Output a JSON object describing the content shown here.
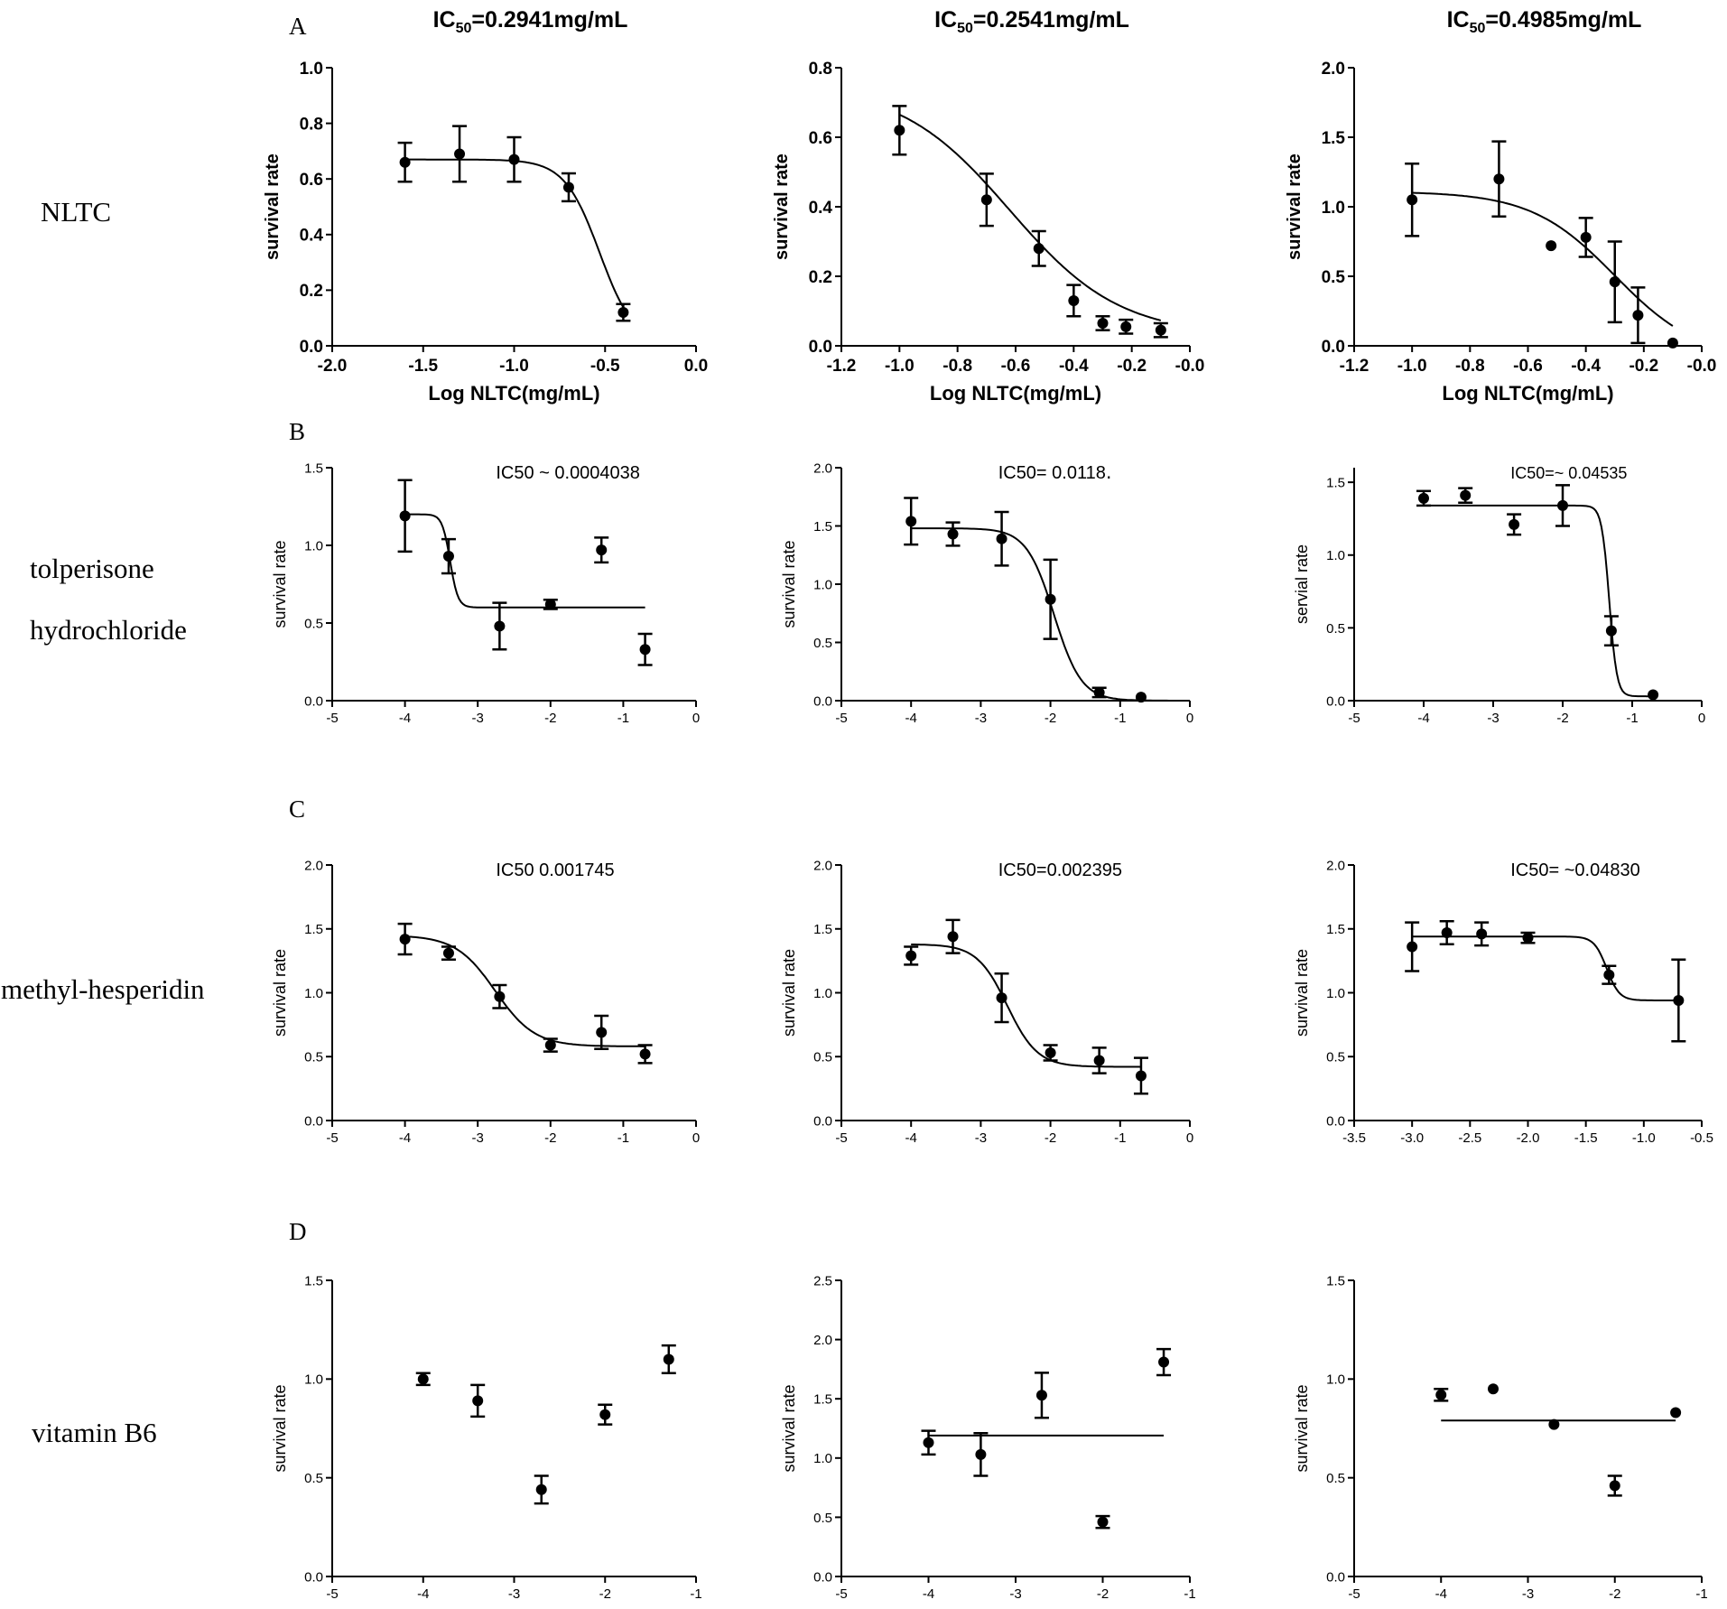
{
  "figure": {
    "panel_letters": [
      "A",
      "B",
      "C",
      "D"
    ],
    "row_labels": [
      [
        "NLTC"
      ],
      [
        "tolperisone",
        "hydrochloride"
      ],
      [
        "methyl-hesperidin"
      ],
      [
        "vitamin B6"
      ]
    ]
  },
  "chart_data": [
    {
      "type": "scatter",
      "row": 0,
      "col": 0,
      "title": "IC50=0.2941mg/mL",
      "ylabel": "survival rate",
      "xlabel": "Log NLTC(mg/mL)",
      "xlim": [
        -2.0,
        0.0
      ],
      "ylim": [
        0.0,
        1.0
      ],
      "xticks": [
        -2.0,
        -1.5,
        -1.0,
        -0.5,
        0.0
      ],
      "xtick_labels": [
        "-2.0",
        "-1.5",
        "-1.0",
        "-0.5",
        "0.0"
      ],
      "yticks": [
        0,
        0.2,
        0.4,
        0.6,
        0.8,
        1.0
      ],
      "ytick_labels": [
        "0.0",
        "0.2",
        "0.4",
        "0.6",
        "0.8",
        "1.0"
      ],
      "points": [
        {
          "x": -1.6,
          "y": 0.66,
          "err": 0.07
        },
        {
          "x": -1.3,
          "y": 0.69,
          "err": 0.1
        },
        {
          "x": -1.0,
          "y": 0.67,
          "err": 0.08
        },
        {
          "x": -0.7,
          "y": 0.57,
          "err": 0.05
        },
        {
          "x": -0.4,
          "y": 0.12,
          "err": 0.03
        }
      ],
      "fit": {
        "kind": "sigmoid",
        "bottom": 0.0,
        "top": 0.67,
        "logec50": -0.53,
        "hill": -4.5,
        "xmin": -1.6,
        "xmax": -0.4
      }
    },
    {
      "type": "scatter",
      "row": 0,
      "col": 1,
      "title": "IC50=0.2541mg/mL",
      "ylabel": "survival rate",
      "xlabel": "Log NLTC(mg/mL)",
      "xlim": [
        -1.2,
        0.0
      ],
      "ylim": [
        0.0,
        0.8
      ],
      "xticks": [
        -1.2,
        -1.0,
        -0.8,
        -0.6,
        -0.4,
        -0.2,
        0.0
      ],
      "xtick_labels": [
        "-1.2",
        "-1.0",
        "-0.8",
        "-0.6",
        "-0.4",
        "-0.2",
        "-0.0"
      ],
      "yticks": [
        0,
        0.2,
        0.4,
        0.6,
        0.8
      ],
      "ytick_labels": [
        "0.0",
        "0.2",
        "0.4",
        "0.6",
        "0.8"
      ],
      "points": [
        {
          "x": -1.0,
          "y": 0.62,
          "err": 0.07
        },
        {
          "x": -0.7,
          "y": 0.42,
          "err": 0.075
        },
        {
          "x": -0.52,
          "y": 0.28,
          "err": 0.05
        },
        {
          "x": -0.4,
          "y": 0.13,
          "err": 0.045
        },
        {
          "x": -0.3,
          "y": 0.065,
          "err": 0.02
        },
        {
          "x": -0.22,
          "y": 0.055,
          "err": 0.02
        },
        {
          "x": -0.1,
          "y": 0.045,
          "err": 0.02
        }
      ],
      "fit": {
        "kind": "sigmoid",
        "bottom": 0.03,
        "top": 0.75,
        "logec50": -0.62,
        "hill": -2.3,
        "xmin": -1.0,
        "xmax": -0.1
      }
    },
    {
      "type": "scatter",
      "row": 0,
      "col": 2,
      "title": "IC50=0.4985mg/mL",
      "ylabel": "survival rate",
      "xlabel": "Log NLTC(mg/mL)",
      "xlim": [
        -1.2,
        0.0
      ],
      "ylim": [
        0.0,
        2.0
      ],
      "xticks": [
        -1.2,
        -1.0,
        -0.8,
        -0.6,
        -0.4,
        -0.2,
        0.0
      ],
      "xtick_labels": [
        "-1.2",
        "-1.0",
        "-0.8",
        "-0.6",
        "-0.4",
        "-0.2",
        "-0.0"
      ],
      "yticks": [
        0,
        0.5,
        1.0,
        1.5,
        2.0
      ],
      "ytick_labels": [
        "0.0",
        "0.5",
        "1.0",
        "1.5",
        "2.0"
      ],
      "points": [
        {
          "x": -1.0,
          "y": 1.05,
          "err": 0.26
        },
        {
          "x": -0.7,
          "y": 1.2,
          "err": 0.27
        },
        {
          "x": -0.52,
          "y": 0.72,
          "err": 0.0
        },
        {
          "x": -0.4,
          "y": 0.78,
          "err": 0.14
        },
        {
          "x": -0.3,
          "y": 0.46,
          "err": 0.29
        },
        {
          "x": -0.22,
          "y": 0.22,
          "err": 0.2
        },
        {
          "x": -0.1,
          "y": 0.02,
          "err": 0.0
        }
      ],
      "fit": {
        "kind": "sigmoid",
        "bottom": -0.1,
        "top": 1.11,
        "logec50": -0.3,
        "hill": -3.0,
        "xmin": -1.0,
        "xmax": -0.1
      }
    },
    {
      "type": "scatter",
      "row": 1,
      "col": 0,
      "annotation": "IC50 ~ 0.0004038",
      "ylabel": "survival rate",
      "xlabel": "",
      "xlim": [
        -5,
        0
      ],
      "ylim": [
        0.0,
        1.5
      ],
      "xticks": [
        -5,
        -4,
        -3,
        -2,
        -1,
        0
      ],
      "xtick_labels": [
        "-5",
        "-4",
        "-3",
        "-2",
        "-1",
        "0"
      ],
      "yticks": [
        0,
        0.5,
        1.0,
        1.5
      ],
      "ytick_labels": [
        "0.0",
        "0.5",
        "1.0",
        "1.5"
      ],
      "points": [
        {
          "x": -4.0,
          "y": 1.19,
          "err": 0.23
        },
        {
          "x": -3.4,
          "y": 0.93,
          "err": 0.11
        },
        {
          "x": -2.7,
          "y": 0.48,
          "err": 0.15
        },
        {
          "x": -2.0,
          "y": 0.62,
          "err": 0.03
        },
        {
          "x": -1.3,
          "y": 0.97,
          "err": 0.08
        },
        {
          "x": -0.7,
          "y": 0.33,
          "err": 0.1
        }
      ],
      "fit": {
        "kind": "sigmoid",
        "bottom": 0.6,
        "top": 1.2,
        "logec50": -3.38,
        "hill": -8.0,
        "xmin": -4.0,
        "xmax": -0.7
      }
    },
    {
      "type": "scatter",
      "row": 1,
      "col": 1,
      "annotation": "IC50=  0.0118․",
      "ylabel": "survival rate",
      "xlabel": "",
      "xlim": [
        -5,
        0
      ],
      "ylim": [
        0.0,
        2.0
      ],
      "xticks": [
        -5,
        -4,
        -3,
        -2,
        -1,
        0
      ],
      "xtick_labels": [
        "-5",
        "-4",
        "-3",
        "-2",
        "-1",
        "0"
      ],
      "yticks": [
        0,
        0.5,
        1.0,
        1.5,
        2.0
      ],
      "ytick_labels": [
        "0.0",
        "0.5",
        "1.0",
        "1.5",
        "2.0"
      ],
      "points": [
        {
          "x": -4.0,
          "y": 1.54,
          "err": 0.2
        },
        {
          "x": -3.4,
          "y": 1.43,
          "err": 0.1
        },
        {
          "x": -2.7,
          "y": 1.39,
          "err": 0.23
        },
        {
          "x": -2.0,
          "y": 0.87,
          "err": 0.34
        },
        {
          "x": -1.3,
          "y": 0.07,
          "err": 0.04
        },
        {
          "x": -0.7,
          "y": 0.03,
          "err": 0.0
        }
      ],
      "fit": {
        "kind": "sigmoid",
        "bottom": 0.0,
        "top": 1.48,
        "logec50": -1.95,
        "hill": -2.2,
        "xmin": -4.0,
        "xmax": 0.0
      }
    },
    {
      "type": "scatter",
      "row": 1,
      "col": 2,
      "annotation": "IC50=~ 0.04535",
      "ylabel": "servial rate",
      "xlabel": "",
      "xlim": [
        -5,
        0
      ],
      "ylim": [
        0.0,
        1.6
      ],
      "xticks": [
        -5,
        -4,
        -3,
        -2,
        -1,
        0
      ],
      "xtick_labels": [
        "-5",
        "-4",
        "-3",
        "-2",
        "-1",
        "0"
      ],
      "yticks": [
        0,
        0.5,
        1.0,
        1.5
      ],
      "ytick_labels": [
        "0.0",
        "0.5",
        "1.0",
        "1.5"
      ],
      "points": [
        {
          "x": -4.0,
          "y": 1.39,
          "err": 0.05
        },
        {
          "x": -3.4,
          "y": 1.41,
          "err": 0.05
        },
        {
          "x": -2.7,
          "y": 1.21,
          "err": 0.07
        },
        {
          "x": -2.0,
          "y": 1.34,
          "err": 0.14
        },
        {
          "x": -1.3,
          "y": 0.48,
          "err": 0.1
        },
        {
          "x": -0.7,
          "y": 0.04,
          "err": 0.0
        }
      ],
      "fit": {
        "kind": "sigmoid",
        "bottom": 0.03,
        "top": 1.34,
        "logec50": -1.33,
        "hill": -8.0,
        "xmin": -4.0,
        "xmax": -0.7
      }
    },
    {
      "type": "scatter",
      "row": 2,
      "col": 0,
      "annotation": "IC50  0.001745",
      "ylabel": "survival rate",
      "xlabel": "",
      "xlim": [
        -5,
        0
      ],
      "ylim": [
        0.0,
        2.0
      ],
      "xticks": [
        -5,
        -4,
        -3,
        -2,
        -1,
        0
      ],
      "xtick_labels": [
        "-5",
        "-4",
        "-3",
        "-2",
        "-1",
        "0"
      ],
      "yticks": [
        0,
        0.5,
        1.0,
        1.5,
        2.0
      ],
      "ytick_labels": [
        "0.0",
        "0.5",
        "1.0",
        "1.5",
        "2.0"
      ],
      "points": [
        {
          "x": -4.0,
          "y": 1.42,
          "err": 0.12
        },
        {
          "x": -3.4,
          "y": 1.31,
          "err": 0.05
        },
        {
          "x": -2.7,
          "y": 0.97,
          "err": 0.09
        },
        {
          "x": -2.0,
          "y": 0.59,
          "err": 0.05
        },
        {
          "x": -1.3,
          "y": 0.69,
          "err": 0.13
        },
        {
          "x": -0.7,
          "y": 0.52,
          "err": 0.07
        }
      ],
      "fit": {
        "kind": "sigmoid",
        "bottom": 0.58,
        "top": 1.45,
        "logec50": -2.76,
        "hill": -1.6,
        "xmin": -4.0,
        "xmax": -0.7
      }
    },
    {
      "type": "scatter",
      "row": 2,
      "col": 1,
      "annotation": "IC50=0.002395",
      "ylabel": "survival rate",
      "xlabel": "",
      "xlim": [
        -5,
        0
      ],
      "ylim": [
        0.0,
        2.0
      ],
      "xticks": [
        -5,
        -4,
        -3,
        -2,
        -1,
        0
      ],
      "xtick_labels": [
        "-5",
        "-4",
        "-3",
        "-2",
        "-1",
        "0"
      ],
      "yticks": [
        0,
        0.5,
        1.0,
        1.5,
        2.0
      ],
      "ytick_labels": [
        "0.0",
        "0.5",
        "1.0",
        "1.5",
        "2.0"
      ],
      "points": [
        {
          "x": -4.0,
          "y": 1.29,
          "err": 0.07
        },
        {
          "x": -3.4,
          "y": 1.44,
          "err": 0.13
        },
        {
          "x": -2.7,
          "y": 0.96,
          "err": 0.19
        },
        {
          "x": -2.0,
          "y": 0.53,
          "err": 0.06
        },
        {
          "x": -1.3,
          "y": 0.47,
          "err": 0.1
        },
        {
          "x": -0.7,
          "y": 0.35,
          "err": 0.14
        }
      ],
      "fit": {
        "kind": "sigmoid",
        "bottom": 0.42,
        "top": 1.38,
        "logec50": -2.62,
        "hill": -2.0,
        "xmin": -4.0,
        "xmax": -0.7
      }
    },
    {
      "type": "scatter",
      "row": 2,
      "col": 2,
      "annotation": "IC50=    ~0.04830",
      "ylabel": "survival rate",
      "xlabel": "",
      "xlim": [
        -3.5,
        -0.5
      ],
      "ylim": [
        0.0,
        2.0
      ],
      "xticks": [
        -3.5,
        -3.0,
        -2.5,
        -2.0,
        -1.5,
        -1.0,
        -0.5
      ],
      "xtick_labels": [
        "-3.5",
        "-3.0",
        "-2.5",
        "-2.0",
        "-1.5",
        "-1.0",
        "-0.5"
      ],
      "yticks": [
        0,
        0.5,
        1.0,
        1.5,
        2.0
      ],
      "ytick_labels": [
        "0.0",
        "0.5",
        "1.0",
        "1.5",
        "2.0"
      ],
      "points": [
        {
          "x": -3.0,
          "y": 1.36,
          "err": 0.19
        },
        {
          "x": -2.7,
          "y": 1.47,
          "err": 0.09
        },
        {
          "x": -2.4,
          "y": 1.46,
          "err": 0.09
        },
        {
          "x": -2.0,
          "y": 1.43,
          "err": 0.04
        },
        {
          "x": -1.3,
          "y": 1.14,
          "err": 0.07
        },
        {
          "x": -0.7,
          "y": 0.94,
          "err": 0.32
        }
      ],
      "fit": {
        "kind": "sigmoid",
        "bottom": 0.94,
        "top": 1.44,
        "logec50": -1.32,
        "hill": -8.0,
        "xmin": -3.0,
        "xmax": -0.7
      }
    },
    {
      "type": "scatter",
      "row": 3,
      "col": 0,
      "ylabel": "survival rate",
      "xlabel": "",
      "xlim": [
        -5,
        -1
      ],
      "ylim": [
        0.0,
        1.5
      ],
      "xticks": [
        -5,
        -4,
        -3,
        -2,
        -1
      ],
      "xtick_labels": [
        "-5",
        "-4",
        "-3",
        "-2",
        "-1"
      ],
      "yticks": [
        0,
        0.5,
        1.0,
        1.5
      ],
      "ytick_labels": [
        "0.0",
        "0.5",
        "1.0",
        "1.5"
      ],
      "points": [
        {
          "x": -4.0,
          "y": 1.0,
          "err": 0.03
        },
        {
          "x": -3.4,
          "y": 0.89,
          "err": 0.08
        },
        {
          "x": -2.7,
          "y": 0.44,
          "err": 0.07
        },
        {
          "x": -2.0,
          "y": 0.82,
          "err": 0.05
        },
        {
          "x": -1.3,
          "y": 1.1,
          "err": 0.07
        }
      ],
      "fit": null
    },
    {
      "type": "scatter",
      "row": 3,
      "col": 1,
      "ylabel": "survival rate",
      "xlabel": "",
      "xlim": [
        -5,
        -1
      ],
      "ylim": [
        0.0,
        2.5
      ],
      "xticks": [
        -5,
        -4,
        -3,
        -2,
        -1
      ],
      "xtick_labels": [
        "-5",
        "-4",
        "-3",
        "-2",
        "-1"
      ],
      "yticks": [
        0,
        0.5,
        1.0,
        1.5,
        2.0,
        2.5
      ],
      "ytick_labels": [
        "0.0",
        "0.5",
        "1.0",
        "1.5",
        "2.0",
        "2.5"
      ],
      "points": [
        {
          "x": -4.0,
          "y": 1.13,
          "err": 0.1
        },
        {
          "x": -3.4,
          "y": 1.03,
          "err": 0.18
        },
        {
          "x": -2.7,
          "y": 1.53,
          "err": 0.19
        },
        {
          "x": -2.0,
          "y": 0.46,
          "err": 0.05
        },
        {
          "x": -1.3,
          "y": 1.81,
          "err": 0.11
        }
      ],
      "fit": {
        "kind": "flat",
        "value": 1.19,
        "xmin": -4.0,
        "xmax": -1.3
      }
    },
    {
      "type": "scatter",
      "row": 3,
      "col": 2,
      "ylabel": "survival rate",
      "xlabel": "",
      "xlim": [
        -5,
        -1
      ],
      "ylim": [
        0.0,
        1.5
      ],
      "xticks": [
        -5,
        -4,
        -3,
        -2,
        -1
      ],
      "xtick_labels": [
        "-5",
        "-4",
        "-3",
        "-2",
        "-1"
      ],
      "yticks": [
        0,
        0.5,
        1.0,
        1.5
      ],
      "ytick_labels": [
        "0.0",
        "0.5",
        "1.0",
        "1.5"
      ],
      "points": [
        {
          "x": -4.0,
          "y": 0.92,
          "err": 0.03
        },
        {
          "x": -3.4,
          "y": 0.95,
          "err": 0.0
        },
        {
          "x": -2.7,
          "y": 0.77,
          "err": 0.0
        },
        {
          "x": -2.0,
          "y": 0.46,
          "err": 0.05
        },
        {
          "x": -1.3,
          "y": 0.83,
          "err": 0.0
        }
      ],
      "fit": {
        "kind": "flat",
        "value": 0.79,
        "xmin": -4.0,
        "xmax": -1.3
      }
    }
  ]
}
